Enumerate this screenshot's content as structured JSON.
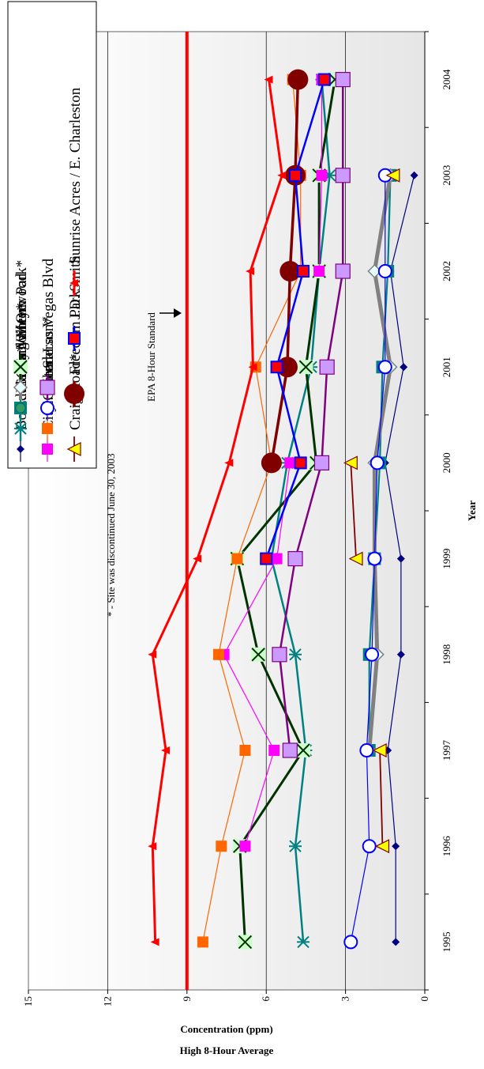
{
  "chart_data": {
    "type": "line",
    "xlabel": "Year",
    "ylabel": "Concentration (ppm)",
    "ylabel2": "High 8-Hour Average",
    "ylim": [
      0,
      15
    ],
    "yticks": [
      0,
      3,
      6,
      9,
      12,
      15
    ],
    "categories": [
      "1995",
      "1996",
      "1997",
      "1998",
      "1999",
      "2000",
      "2001",
      "2002",
      "2003",
      "2004"
    ],
    "grid": true,
    "legend_position": "top-left",
    "footnote": "* - Site was discontinued June 30, 2003",
    "standard": {
      "label": "EPA 8-Hour Standard",
      "value": 9,
      "color": "#ff0000"
    },
    "series": [
      {
        "name": "Boulder City*",
        "color": "#000080",
        "marker": "diamond",
        "width": 1.2,
        "values": [
          1.1,
          1.1,
          1.4,
          0.9,
          0.9,
          1.5,
          0.8,
          1.3,
          0.4,
          null
        ]
      },
      {
        "name": "E. Flamingo / Orr",
        "color": "#008080",
        "marker": "star",
        "width": 2.5,
        "values": [
          4.6,
          4.9,
          4.5,
          4.9,
          5.8,
          5.2,
          4.3,
          4.0,
          3.6,
          3.9
        ]
      },
      {
        "name": "Green Valley*",
        "color": "#008080",
        "marker": "square-green",
        "width": 2.2,
        "values": [
          null,
          null,
          2.1,
          2.1,
          1.9,
          1.7,
          1.6,
          1.4,
          1.3,
          null
        ]
      },
      {
        "name": "Paul Meyer Park*",
        "color": "#808080",
        "marker": "diamond-white",
        "width": 5,
        "values": [
          null,
          null,
          2.1,
          1.8,
          1.9,
          1.9,
          1.3,
          1.9,
          1.3,
          null
        ]
      },
      {
        "name": "Winterwood",
        "color": "#003300",
        "marker": "x-box",
        "width": 3,
        "values": [
          6.8,
          7.0,
          4.6,
          6.3,
          7.1,
          4.1,
          4.5,
          4.0,
          4.0,
          3.4
        ]
      },
      {
        "name": "City Center",
        "color": "#ff00ff",
        "marker": "square-magenta",
        "width": 1.2,
        "values": [
          null,
          6.8,
          5.7,
          7.6,
          5.6,
          5.1,
          null,
          4.0,
          3.9,
          3.9
        ]
      },
      {
        "name": "E. Sahara",
        "color": "#ff6600",
        "marker": "square-orange",
        "width": 1.2,
        "values": [
          8.4,
          7.7,
          6.8,
          7.8,
          7.1,
          5.8,
          6.4,
          4.7,
          4.7,
          5.0
        ]
      },
      {
        "name": "Henderson*",
        "color": "#0000ff",
        "marker": "circle-open",
        "width": 1.2,
        "values": [
          2.8,
          2.1,
          2.2,
          2.0,
          1.9,
          1.8,
          1.5,
          1.5,
          1.5,
          null
        ]
      },
      {
        "name": "S. Las Vegas Blvd",
        "color": "#800080",
        "marker": "square-violet",
        "width": 2.5,
        "values": [
          null,
          null,
          5.1,
          5.5,
          4.9,
          3.9,
          3.7,
          3.1,
          3.1,
          3.1
        ]
      },
      {
        "name": "Craig Road*",
        "color": "#800000",
        "marker": "triangle",
        "width": 1.8,
        "values": [
          null,
          1.6,
          1.7,
          null,
          2.6,
          2.8,
          null,
          null,
          1.2,
          null
        ]
      },
      {
        "name": "Freedom Park",
        "color": "#800000",
        "marker": "circle-filled",
        "width": 3.5,
        "values": [
          null,
          null,
          null,
          null,
          null,
          5.8,
          5.2,
          5.1,
          4.9,
          4.8
        ]
      },
      {
        "name": "J.D. Smith",
        "color": "#0000ff",
        "marker": "square-red",
        "width": 2.5,
        "values": [
          null,
          null,
          null,
          null,
          6.0,
          4.7,
          5.6,
          4.6,
          4.9,
          3.8
        ]
      },
      {
        "name": "Sunrise Acres / E. Charleston",
        "color": "#ff0000",
        "marker": "tri-red",
        "width": 3,
        "values": [
          10.2,
          10.3,
          9.8,
          10.3,
          8.6,
          7.4,
          6.5,
          6.6,
          5.4,
          5.9
        ]
      }
    ]
  }
}
